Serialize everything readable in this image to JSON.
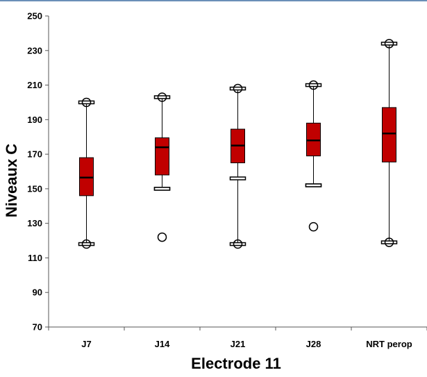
{
  "chart_data": {
    "type": "box",
    "xlabel": "Electrode 11",
    "ylabel": "Niveaux C",
    "ylim": [
      70,
      250
    ],
    "yticks": [
      70,
      90,
      110,
      130,
      150,
      170,
      190,
      210,
      230,
      250
    ],
    "grid": false,
    "colors": {
      "box_fill": "#c00000",
      "stroke": "#000000"
    },
    "categories": [
      "J7",
      "J14",
      "J21",
      "J28",
      "NRT perop"
    ],
    "boxes": [
      {
        "category": "J7",
        "whisker_low": 118,
        "q1": 146,
        "median": 156.5,
        "q3": 168,
        "whisker_high": 200,
        "outliers": [
          118,
          200
        ],
        "mean": null
      },
      {
        "category": "J14",
        "whisker_low": 150,
        "q1": 158,
        "median": 174,
        "q3": 179.5,
        "whisker_high": 203,
        "outliers": [
          122,
          203
        ],
        "mean": 150
      },
      {
        "category": "J21",
        "whisker_low": 118,
        "q1": 165,
        "median": 175,
        "q3": 184.5,
        "whisker_high": 208,
        "outliers": [
          118,
          208
        ],
        "mean": 156
      },
      {
        "category": "J28",
        "whisker_low": 152,
        "q1": 169,
        "median": 178,
        "q3": 188,
        "whisker_high": 210,
        "outliers": [
          128,
          210
        ],
        "mean": 152
      },
      {
        "category": "NRT perop",
        "whisker_low": 119,
        "q1": 165.5,
        "median": 182,
        "q3": 197,
        "whisker_high": 234,
        "outliers": [
          119,
          234
        ],
        "mean": null
      }
    ]
  }
}
